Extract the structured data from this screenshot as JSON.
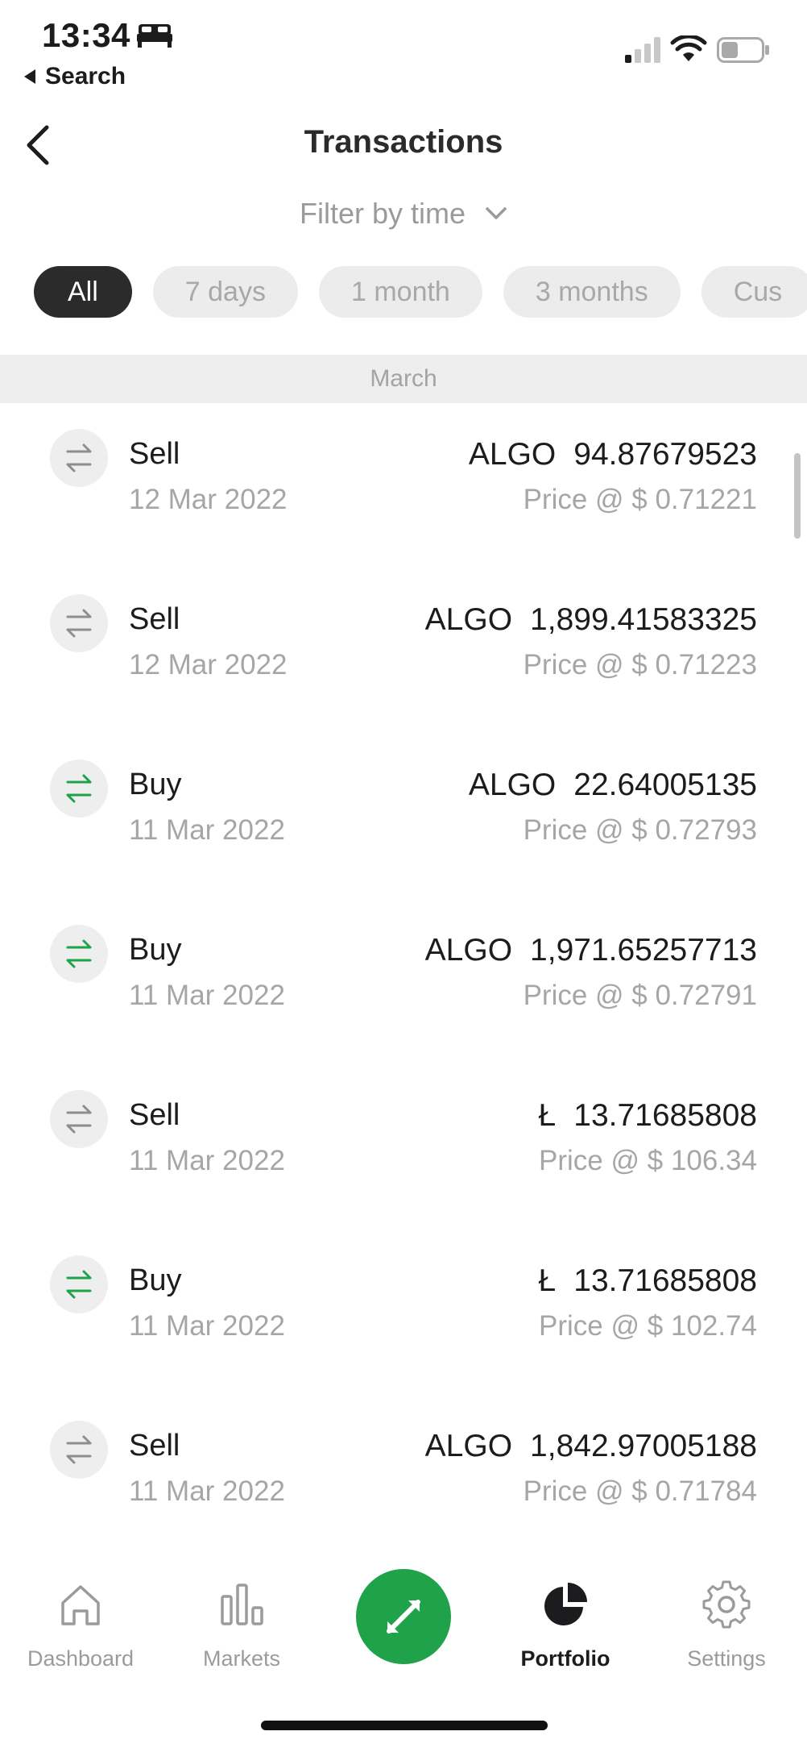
{
  "status_bar": {
    "time": "13:34",
    "back_app": "Search",
    "icons": [
      "bed-icon",
      "signal-icon",
      "wifi-icon",
      "battery-icon"
    ]
  },
  "header": {
    "title": "Transactions"
  },
  "filter": {
    "label": "Filter by time",
    "chips": [
      {
        "label": "All",
        "active": true
      },
      {
        "label": "7 days",
        "active": false
      },
      {
        "label": "1 month",
        "active": false
      },
      {
        "label": "3 months",
        "active": false
      },
      {
        "label": "Cus",
        "active": false
      }
    ]
  },
  "section": {
    "title": "March"
  },
  "transactions": [
    {
      "type": "Sell",
      "date": "12 Mar 2022",
      "asset": "ALGO",
      "amount": "94.87679523",
      "price": "Price @ $ 0.71221",
      "direction": "sell"
    },
    {
      "type": "Sell",
      "date": "12 Mar 2022",
      "asset": "ALGO",
      "amount": "1,899.41583325",
      "price": "Price @ $ 0.71223",
      "direction": "sell"
    },
    {
      "type": "Buy",
      "date": "11 Mar 2022",
      "asset": "ALGO",
      "amount": "22.64005135",
      "price": "Price @ $ 0.72793",
      "direction": "buy"
    },
    {
      "type": "Buy",
      "date": "11 Mar 2022",
      "asset": "ALGO",
      "amount": "1,971.65257713",
      "price": "Price @ $ 0.72791",
      "direction": "buy"
    },
    {
      "type": "Sell",
      "date": "11 Mar 2022",
      "asset": "Ł",
      "amount": "13.71685808",
      "price": "Price @ $ 106.34",
      "direction": "sell"
    },
    {
      "type": "Buy",
      "date": "11 Mar 2022",
      "asset": "Ł",
      "amount": "13.71685808",
      "price": "Price @ $ 102.74",
      "direction": "buy"
    },
    {
      "type": "Sell",
      "date": "11 Mar 2022",
      "asset": "ALGO",
      "amount": "1,842.97005188",
      "price": "Price @ $ 0.71784",
      "direction": "sell"
    }
  ],
  "tab_bar": {
    "tabs": [
      {
        "label": "Dashboard",
        "icon": "home-icon",
        "active": false
      },
      {
        "label": "Markets",
        "icon": "bar-chart-icon",
        "active": false
      },
      {
        "label": "Portfolio",
        "icon": "pie-chart-icon",
        "active": true
      },
      {
        "label": "Settings",
        "icon": "gear-icon",
        "active": false
      }
    ],
    "center_button_icon": "swap-arrows-icon"
  },
  "colors": {
    "buy_green": "#1fa24a",
    "sell_gray": "#8e8e8e",
    "active_chip": "#2b2b2b",
    "muted_text": "#a6a6a6"
  }
}
